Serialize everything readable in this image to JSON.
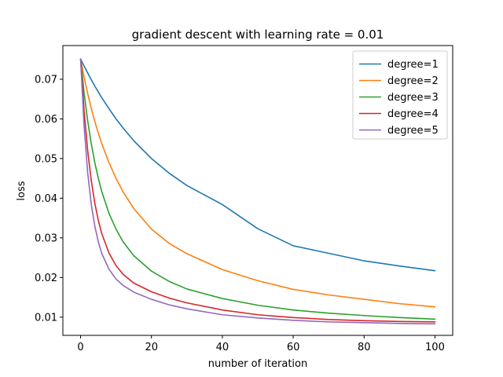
{
  "chart_data": {
    "type": "line",
    "title": "gradient descent with learning rate = 0.01",
    "xlabel": "number of iteration",
    "ylabel": "loss",
    "xlim": [
      -5,
      105
    ],
    "ylim": [
      0.0054,
      0.0785
    ],
    "xticks": [
      0,
      20,
      40,
      60,
      80,
      100
    ],
    "yticks": [
      0.01,
      0.02,
      0.03,
      0.04,
      0.05,
      0.06,
      0.07
    ],
    "grid": false,
    "legend_position": "top-right",
    "x": [
      0,
      1,
      2,
      3,
      4,
      5,
      6,
      8,
      10,
      12,
      15,
      20,
      25,
      30,
      40,
      50,
      60,
      70,
      80,
      90,
      100
    ],
    "series": [
      {
        "name": "degree=1",
        "color": "#1f77b4",
        "values": [
          0.0751,
          0.0733,
          0.0716,
          0.0699,
          0.0683,
          0.0668,
          0.0653,
          0.0626,
          0.06,
          0.0577,
          0.0545,
          0.05,
          0.0463,
          0.0432,
          0.0384,
          0.0323,
          0.028,
          0.0261,
          0.0242,
          0.0229,
          0.0217
        ]
      },
      {
        "name": "degree=2",
        "color": "#ff7f0e",
        "values": [
          0.0751,
          0.0705,
          0.0664,
          0.0627,
          0.0594,
          0.0564,
          0.0537,
          0.049,
          0.045,
          0.0416,
          0.0374,
          0.0322,
          0.0286,
          0.026,
          0.022,
          0.0192,
          0.017,
          0.0156,
          0.0145,
          0.0134,
          0.0126
        ]
      },
      {
        "name": "degree=3",
        "color": "#2ca02c",
        "values": [
          0.0751,
          0.0665,
          0.0595,
          0.0538,
          0.049,
          0.045,
          0.0416,
          0.0362,
          0.0322,
          0.029,
          0.0255,
          0.0216,
          0.019,
          0.0171,
          0.0147,
          0.013,
          0.0118,
          0.011,
          0.0104,
          0.0099,
          0.0095
        ]
      },
      {
        "name": "degree=4",
        "color": "#d62728",
        "values": [
          0.0751,
          0.062,
          0.052,
          0.0445,
          0.0388,
          0.0344,
          0.031,
          0.0262,
          0.023,
          0.0208,
          0.0186,
          0.0164,
          0.0148,
          0.0136,
          0.0118,
          0.0106,
          0.0099,
          0.0094,
          0.0091,
          0.0089,
          0.0088
        ]
      },
      {
        "name": "degree=5",
        "color": "#9467bd",
        "values": [
          0.0751,
          0.058,
          0.0465,
          0.0385,
          0.033,
          0.029,
          0.026,
          0.0221,
          0.0196,
          0.018,
          0.0163,
          0.0145,
          0.0131,
          0.0121,
          0.0106,
          0.0098,
          0.0092,
          0.0088,
          0.0086,
          0.0084,
          0.0083
        ]
      }
    ]
  }
}
